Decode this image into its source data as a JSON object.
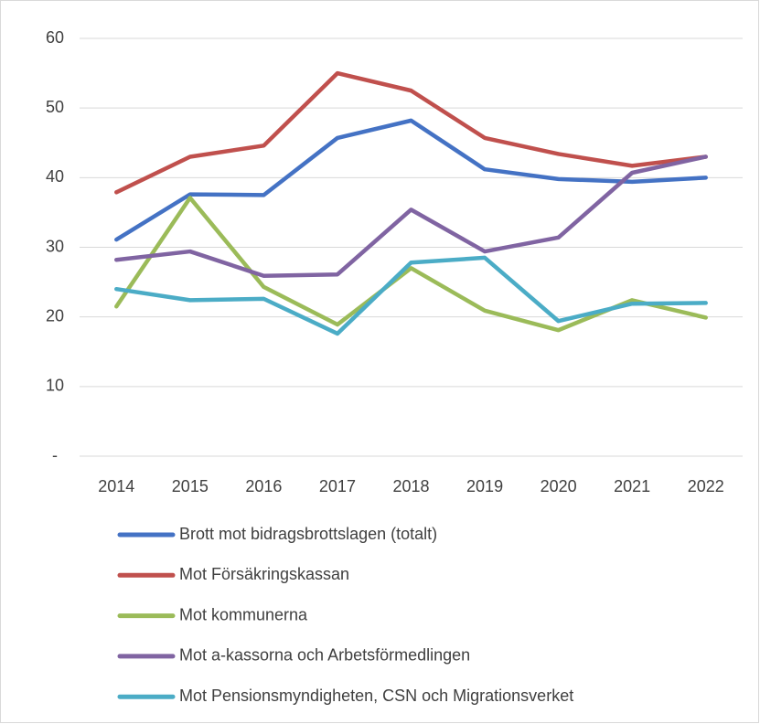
{
  "chart_data": {
    "type": "line",
    "categories": [
      "2014",
      "2015",
      "2016",
      "2017",
      "2018",
      "2019",
      "2020",
      "2021",
      "2022"
    ],
    "series": [
      {
        "name": "Brott mot bidragsbrottslagen (totalt)",
        "color": "#4472c4",
        "values": [
          31.1,
          37.6,
          37.5,
          45.7,
          48.2,
          41.2,
          39.8,
          39.4,
          40.0
        ]
      },
      {
        "name": "Mot Försäkringskassan",
        "color": "#c0504d",
        "values": [
          37.9,
          43.0,
          44.6,
          55.0,
          52.5,
          45.7,
          43.4,
          41.7,
          43.0
        ]
      },
      {
        "name": "Mot kommunerna",
        "color": "#9bbb59",
        "values": [
          21.5,
          37.1,
          24.3,
          18.9,
          27.0,
          20.9,
          18.1,
          22.4,
          19.9
        ]
      },
      {
        "name": "Mot a-kassorna och Arbetsförmedlingen",
        "color": "#8064a2",
        "values": [
          28.2,
          29.4,
          25.9,
          26.1,
          35.4,
          29.4,
          31.4,
          40.7,
          43.0
        ]
      },
      {
        "name": "Mot Pensionsmyndigheten, CSN och Migrationsverket",
        "color": "#4bacc6",
        "values": [
          24.0,
          22.4,
          22.6,
          17.6,
          27.8,
          28.5,
          19.4,
          21.9,
          22.0
        ]
      }
    ],
    "ylim": [
      0,
      60
    ],
    "yticks": [
      {
        "value": 0,
        "label": "-"
      },
      10,
      20,
      30,
      40,
      50,
      60
    ],
    "grid": true,
    "legend": "bottom"
  }
}
